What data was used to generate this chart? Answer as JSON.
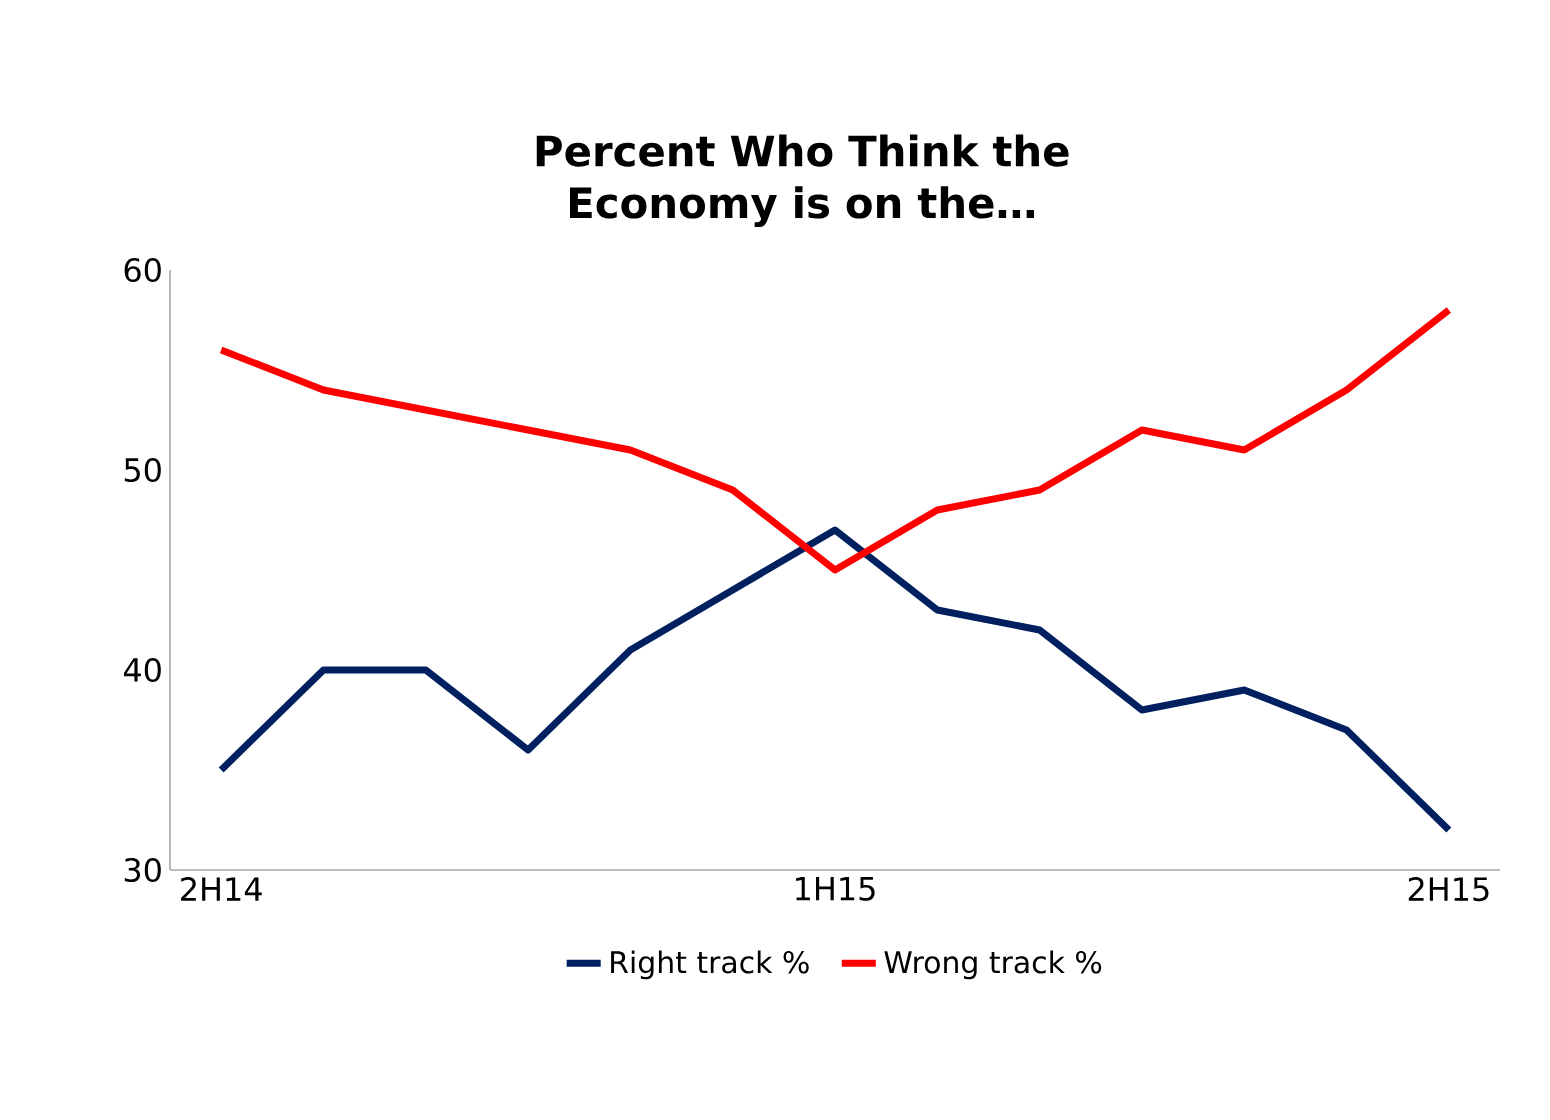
{
  "chart_data": {
    "type": "line",
    "title": "Percent Who Think the Economy is on the…",
    "categories": [
      "2H14",
      null,
      null,
      null,
      null,
      null,
      "1H15",
      null,
      null,
      null,
      null,
      null,
      "2H15"
    ],
    "series": [
      {
        "name": "Right track %",
        "color": "#002060",
        "values": [
          35,
          40,
          40,
          36,
          41,
          44,
          47,
          43,
          42,
          38,
          39,
          37,
          32
        ]
      },
      {
        "name": "Wrong track %",
        "color": "#ff0000",
        "values": [
          56,
          54,
          53,
          52,
          51,
          49,
          45,
          48,
          49,
          52,
          51,
          54,
          58
        ]
      }
    ],
    "ylim": [
      30,
      60
    ],
    "yticks": [
      30,
      40,
      50,
      60
    ],
    "legend": "bottom",
    "grid": false
  }
}
